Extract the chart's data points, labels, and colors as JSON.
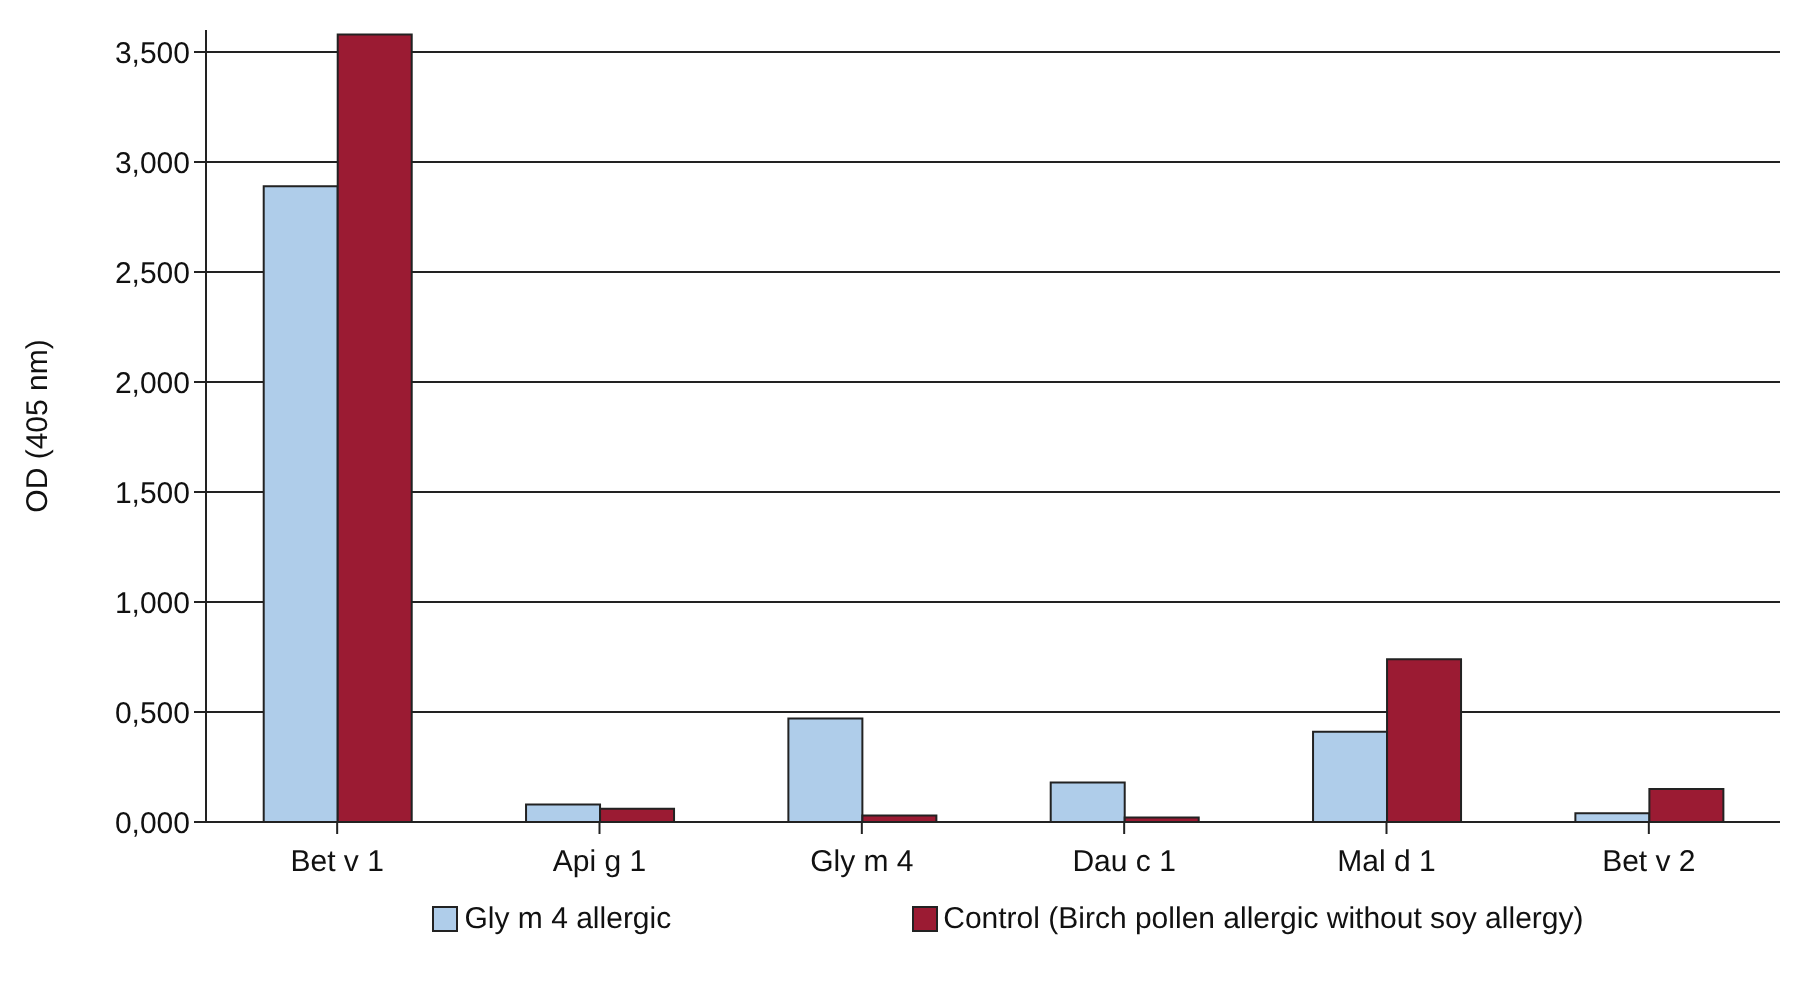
{
  "chart_data": {
    "type": "bar",
    "ylabel": "OD (405 nm)",
    "categories": [
      "Bet v 1",
      "Api g 1",
      "Gly m 4",
      "Dau c 1",
      "Mal d 1",
      "Bet v 2"
    ],
    "series": [
      {
        "name": "Gly m 4 allergic",
        "color": "#afcdea",
        "values": [
          2.89,
          0.08,
          0.47,
          0.18,
          0.41,
          0.04
        ]
      },
      {
        "name": "Control (Birch pollen allergic without soy allergy)",
        "color": "#9b1b33",
        "values": [
          3.58,
          0.06,
          0.03,
          0.02,
          0.74,
          0.15
        ]
      }
    ],
    "ylim": [
      0,
      3.6
    ],
    "yticks": [
      {
        "value": 0,
        "label": "0,000"
      },
      {
        "value": 0.5,
        "label": "0,500"
      },
      {
        "value": 1,
        "label": "1,000"
      },
      {
        "value": 1.5,
        "label": "1,500"
      },
      {
        "value": 2,
        "label": "2,000"
      },
      {
        "value": 2.5,
        "label": "2,500"
      },
      {
        "value": 3,
        "label": "3,000"
      },
      {
        "value": 3.5,
        "label": "3,500"
      }
    ],
    "grid": "y",
    "legend": "bottom"
  }
}
